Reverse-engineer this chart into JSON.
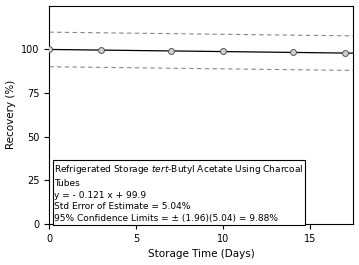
{
  "x_data": [
    0,
    3,
    7,
    10,
    14,
    17
  ],
  "y_data": [
    100.0,
    99.637,
    99.153,
    98.79,
    98.306,
    97.843
  ],
  "slope": -0.121,
  "intercept": 99.9,
  "conf_limit": 9.88,
  "xlabel": "Storage Time (Days)",
  "ylabel": "Recovery (%)",
  "xlim": [
    0,
    17.5
  ],
  "ylim": [
    0,
    125
  ],
  "yticks": [
    0,
    25,
    50,
    75,
    100
  ],
  "xticks": [
    0,
    5,
    10,
    15
  ],
  "line_color": "#000000",
  "marker_facecolor": "#d0d0d0",
  "marker_edgecolor": "#555555",
  "conf_line_color": "#888888",
  "bg_color": "#ffffff",
  "fontsize": 7.0
}
